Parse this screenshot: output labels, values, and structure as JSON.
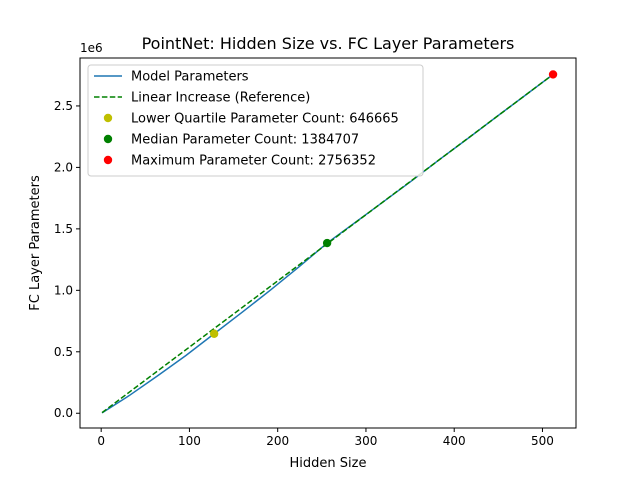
{
  "chart_data": {
    "type": "line",
    "title": "PointNet: Hidden Size vs. FC Layer Parameters",
    "xlabel": "Hidden Size",
    "ylabel": "FC Layer Parameters",
    "y_offset_label": "1e6",
    "xlim": [
      -24,
      538
    ],
    "ylim": [
      -120000,
      2890000
    ],
    "xticks": [
      0,
      100,
      200,
      300,
      400,
      500
    ],
    "xtick_labels": [
      "0",
      "100",
      "200",
      "300",
      "400",
      "500"
    ],
    "yticks": [
      0,
      500000,
      1000000,
      1500000,
      2000000,
      2500000
    ],
    "ytick_labels": [
      "0.0",
      "0.5",
      "1.0",
      "1.5",
      "2.0",
      "2.5"
    ],
    "grid": false,
    "legend_position": "upper-left",
    "series": [
      {
        "name": "Model Parameters",
        "style": "solid",
        "color": "#1f77b4",
        "x": [
          1,
          32,
          64,
          96,
          128,
          160,
          192,
          224,
          256,
          288,
          320,
          352,
          384,
          416,
          448,
          480,
          512
        ],
        "y": [
          3000,
          145000,
          305000,
          470000,
          646665,
          823000,
          1003000,
          1190000,
          1384707,
          1553000,
          1722000,
          1892000,
          2068000,
          2238000,
          2412000,
          2584000,
          2756352
        ]
      },
      {
        "name": "Linear Increase (Reference)",
        "style": "dashed",
        "color": "#008000",
        "x": [
          1,
          512
        ],
        "y": [
          5400,
          2756352
        ]
      }
    ],
    "points": [
      {
        "name": "Lower Quartile Parameter Count: 646665",
        "x": 128,
        "y": 646665,
        "color": "#bfbf00"
      },
      {
        "name": "Median Parameter Count: 1384707",
        "x": 256,
        "y": 1384707,
        "color": "#008000"
      },
      {
        "name": "Maximum Parameter Count: 2756352",
        "x": 512,
        "y": 2756352,
        "color": "#ff0000"
      }
    ]
  }
}
